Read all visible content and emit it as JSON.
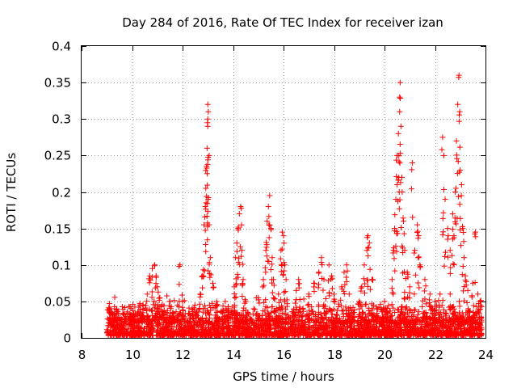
{
  "chart_data": {
    "type": "scatter",
    "title": "Day 284 of 2016, Rate Of TEC Index for receiver izan",
    "xlabel": "GPS time / hours",
    "ylabel": "ROTI / TECUs",
    "xlim": [
      8,
      24
    ],
    "ylim": [
      0,
      0.4
    ],
    "xticks": [
      "8",
      "10",
      "12",
      "14",
      "16",
      "18",
      "20",
      "22",
      "24"
    ],
    "yticks": [
      "0",
      "0.05",
      "0.1",
      "0.15",
      "0.2",
      "0.25",
      "0.3",
      "0.35",
      "0.4"
    ],
    "grid": true,
    "marker": "+",
    "color": "#ff0000",
    "series": [
      {
        "name": "ROTI",
        "baseline_noise": {
          "x_start": 9.0,
          "x_end": 23.85,
          "typical_max": 0.03
        },
        "points": [
          [
            9.1,
            0.047
          ],
          [
            9.15,
            0.04
          ],
          [
            9.2,
            0.035
          ],
          [
            9.6,
            0.025
          ],
          [
            10.1,
            0.03
          ],
          [
            10.3,
            0.045
          ],
          [
            10.6,
            0.06
          ],
          [
            10.7,
            0.085
          ],
          [
            10.8,
            0.095
          ],
          [
            10.9,
            0.1
          ],
          [
            10.95,
            0.085
          ],
          [
            11.0,
            0.07
          ],
          [
            11.1,
            0.055
          ],
          [
            11.5,
            0.05
          ],
          [
            11.8,
            0.045
          ],
          [
            11.9,
            0.1
          ],
          [
            12.0,
            0.05
          ],
          [
            12.3,
            0.03
          ],
          [
            12.7,
            0.06
          ],
          [
            12.8,
            0.085
          ],
          [
            12.85,
            0.155
          ],
          [
            12.9,
            0.18
          ],
          [
            12.92,
            0.205
          ],
          [
            12.95,
            0.235
          ],
          [
            12.97,
            0.26
          ],
          [
            13.0,
            0.29
          ],
          [
            13.0,
            0.3
          ],
          [
            13.02,
            0.31
          ],
          [
            13.0,
            0.32
          ],
          [
            13.05,
            0.155
          ],
          [
            13.1,
            0.11
          ],
          [
            13.2,
            0.075
          ],
          [
            13.35,
            0.05
          ],
          [
            13.8,
            0.04
          ],
          [
            14.05,
            0.07
          ],
          [
            14.1,
            0.11
          ],
          [
            14.15,
            0.13
          ],
          [
            14.2,
            0.15
          ],
          [
            14.25,
            0.17
          ],
          [
            14.3,
            0.18
          ],
          [
            14.35,
            0.12
          ],
          [
            14.4,
            0.08
          ],
          [
            14.5,
            0.05
          ],
          [
            15.0,
            0.055
          ],
          [
            15.2,
            0.08
          ],
          [
            15.3,
            0.12
          ],
          [
            15.35,
            0.16
          ],
          [
            15.4,
            0.18
          ],
          [
            15.45,
            0.195
          ],
          [
            15.5,
            0.15
          ],
          [
            15.55,
            0.11
          ],
          [
            15.6,
            0.08
          ],
          [
            15.8,
            0.06
          ],
          [
            15.9,
            0.12
          ],
          [
            15.95,
            0.145
          ],
          [
            16.0,
            0.14
          ],
          [
            16.05,
            0.1
          ],
          [
            16.1,
            0.08
          ],
          [
            16.5,
            0.065
          ],
          [
            16.6,
            0.08
          ],
          [
            17.0,
            0.06
          ],
          [
            17.2,
            0.075
          ],
          [
            17.4,
            0.09
          ],
          [
            17.5,
            0.11
          ],
          [
            17.6,
            0.08
          ],
          [
            17.8,
            0.1
          ],
          [
            17.9,
            0.085
          ],
          [
            18.0,
            0.06
          ],
          [
            18.3,
            0.07
          ],
          [
            18.4,
            0.09
          ],
          [
            18.5,
            0.1
          ],
          [
            18.6,
            0.06
          ],
          [
            19.0,
            0.05
          ],
          [
            19.1,
            0.07
          ],
          [
            19.2,
            0.1
          ],
          [
            19.3,
            0.12
          ],
          [
            19.35,
            0.14
          ],
          [
            19.4,
            0.13
          ],
          [
            19.5,
            0.08
          ],
          [
            19.7,
            0.04
          ],
          [
            20.0,
            0.05
          ],
          [
            20.3,
            0.08
          ],
          [
            20.35,
            0.12
          ],
          [
            20.4,
            0.15
          ],
          [
            20.45,
            0.19
          ],
          [
            20.5,
            0.21
          ],
          [
            20.5,
            0.25
          ],
          [
            20.55,
            0.28
          ],
          [
            20.6,
            0.31
          ],
          [
            20.6,
            0.33
          ],
          [
            20.62,
            0.35
          ],
          [
            20.65,
            0.29
          ],
          [
            20.7,
            0.2
          ],
          [
            20.75,
            0.16
          ],
          [
            20.8,
            0.12
          ],
          [
            20.9,
            0.09
          ],
          [
            21.0,
            0.07
          ],
          [
            21.1,
            0.24
          ],
          [
            21.2,
            0.12
          ],
          [
            21.3,
            0.155
          ],
          [
            21.35,
            0.14
          ],
          [
            21.4,
            0.1
          ],
          [
            21.6,
            0.08
          ],
          [
            21.8,
            0.06
          ],
          [
            22.0,
            0.05
          ],
          [
            22.2,
            0.06
          ],
          [
            22.3,
            0.275
          ],
          [
            22.35,
            0.25
          ],
          [
            22.4,
            0.19
          ],
          [
            22.5,
            0.15
          ],
          [
            22.6,
            0.12
          ],
          [
            22.7,
            0.17
          ],
          [
            22.75,
            0.14
          ],
          [
            22.8,
            0.2
          ],
          [
            22.85,
            0.27
          ],
          [
            22.9,
            0.32
          ],
          [
            22.95,
            0.36
          ],
          [
            22.98,
            0.31
          ],
          [
            23.0,
            0.23
          ],
          [
            23.05,
            0.21
          ],
          [
            23.1,
            0.15
          ],
          [
            23.15,
            0.11
          ],
          [
            23.2,
            0.085
          ],
          [
            23.3,
            0.065
          ],
          [
            23.5,
            0.075
          ],
          [
            23.6,
            0.145
          ],
          [
            23.7,
            0.06
          ],
          [
            23.8,
            0.05
          ]
        ]
      }
    ]
  }
}
